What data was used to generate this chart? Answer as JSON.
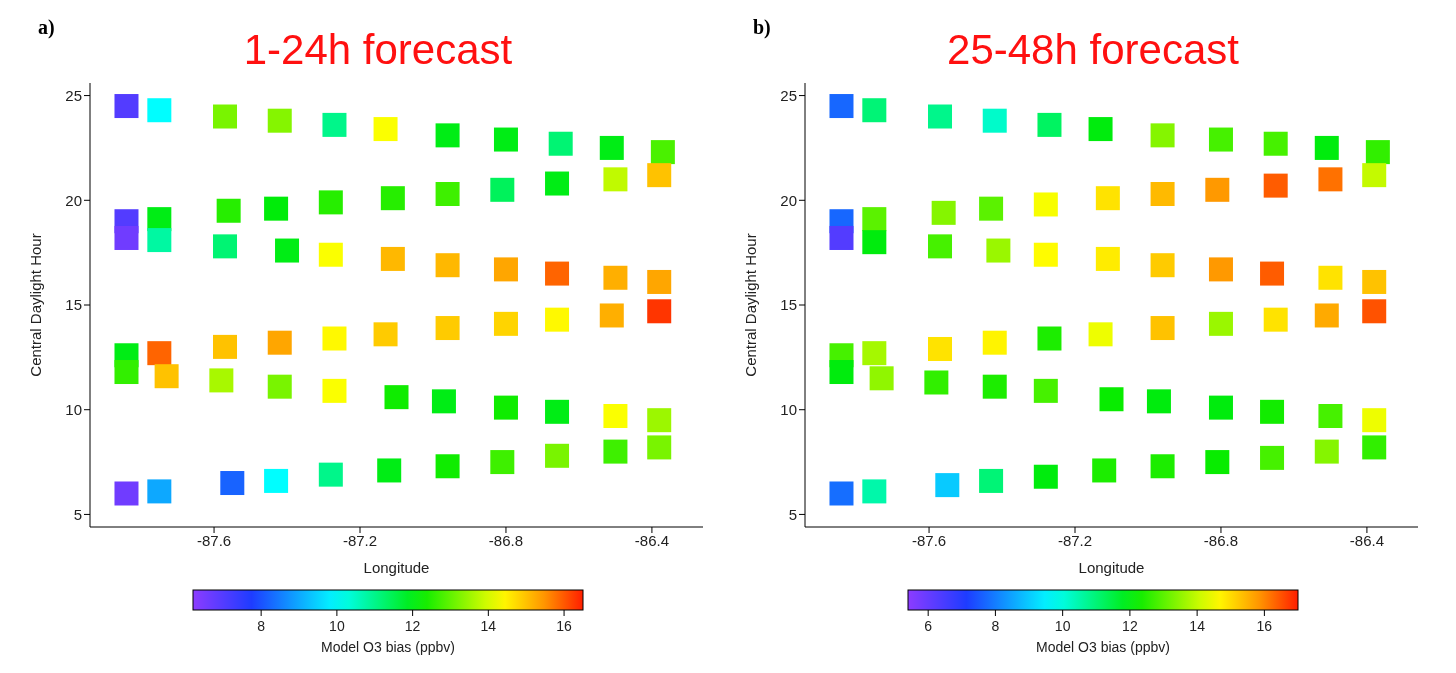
{
  "chart_data": [
    {
      "type": "scatter",
      "title": "1-24h forecast",
      "annotations": [
        "a)"
      ],
      "xlabel": "Longitude",
      "ylabel": "Central Daylight Hour",
      "clabel": "Model O3 bias (ppbv)",
      "marker": "square",
      "x": [
        -87.84,
        -87.75,
        -87.57,
        -87.42,
        -87.27,
        -87.13,
        -86.96,
        -86.8,
        -86.65,
        -86.51,
        -86.37,
        -87.84,
        -87.75,
        -87.56,
        -87.43,
        -87.28,
        -87.11,
        -86.96,
        -86.81,
        -86.66,
        -86.5,
        -86.38,
        -87.84,
        -87.75,
        -87.57,
        -87.4,
        -87.28,
        -87.11,
        -86.96,
        -86.8,
        -86.66,
        -86.5,
        -86.38,
        -87.84,
        -87.75,
        -87.57,
        -87.42,
        -87.27,
        -87.13,
        -86.96,
        -86.8,
        -86.66,
        -86.51,
        -86.38,
        -87.84,
        -87.73,
        -87.58,
        -87.42,
        -87.27,
        -87.1,
        -86.97,
        -86.8,
        -86.66,
        -86.5,
        -86.38,
        -87.84,
        -87.75,
        -87.55,
        -87.43,
        -87.28,
        -87.12,
        -86.96,
        -86.81,
        -86.66,
        -86.5,
        -86.38
      ],
      "values": [
        24.5,
        24.3,
        24.0,
        23.8,
        23.6,
        23.4,
        23.1,
        22.9,
        22.7,
        22.5,
        22.3,
        19.0,
        19.1,
        19.5,
        19.6,
        19.9,
        20.1,
        20.3,
        20.5,
        20.8,
        21.0,
        21.2,
        18.2,
        18.1,
        17.8,
        17.6,
        17.4,
        17.2,
        16.9,
        16.7,
        16.5,
        16.3,
        16.1,
        12.6,
        12.7,
        13.0,
        13.2,
        13.4,
        13.6,
        13.9,
        14.1,
        14.3,
        14.5,
        14.7,
        11.8,
        11.6,
        11.4,
        11.1,
        10.9,
        10.6,
        10.4,
        10.1,
        9.9,
        9.7,
        9.5,
        6.0,
        6.1,
        6.5,
        6.6,
        6.9,
        7.1,
        7.3,
        7.5,
        7.8,
        8.0,
        8.2
      ],
      "cvalues": [
        7.0,
        10.0,
        13.2,
        13.3,
        11.0,
        14.3,
        12.0,
        12.0,
        11.2,
        12.0,
        12.8,
        7.0,
        12.0,
        12.5,
        12.1,
        12.5,
        12.5,
        12.7,
        11.4,
        12.0,
        13.8,
        15.0,
        6.6,
        10.8,
        11.2,
        12.0,
        14.3,
        15.1,
        15.1,
        15.3,
        15.9,
        15.2,
        15.3,
        12.0,
        15.9,
        15.0,
        15.3,
        14.4,
        14.9,
        14.9,
        14.8,
        14.4,
        15.2,
        16.3,
        12.6,
        15.0,
        13.6,
        13.2,
        14.3,
        12.3,
        12.0,
        12.3,
        12.0,
        14.3,
        13.5,
        6.6,
        9.0,
        8.2,
        10.0,
        11.0,
        12.0,
        12.3,
        12.7,
        13.2,
        12.7,
        13.2
      ],
      "xlim": [
        -87.94,
        -86.26
      ],
      "ylim": [
        4.4,
        25.6
      ],
      "xticks": [
        -87.6,
        -87.2,
        -86.8,
        -86.4
      ],
      "yticks": [
        5,
        10,
        15,
        20,
        25
      ],
      "clim": [
        6.2,
        16.5
      ],
      "cticks": [
        8,
        10,
        12,
        14,
        16
      ]
    },
    {
      "type": "scatter",
      "title": "25-48h forecast",
      "annotations": [
        "b)"
      ],
      "xlabel": "Longitude",
      "ylabel": "Central Daylight Hour",
      "clabel": "Model O3 bias (ppbv)",
      "marker": "square",
      "x": [
        -87.84,
        -87.75,
        -87.57,
        -87.42,
        -87.27,
        -87.13,
        -86.96,
        -86.8,
        -86.65,
        -86.51,
        -86.37,
        -87.84,
        -87.75,
        -87.56,
        -87.43,
        -87.28,
        -87.11,
        -86.96,
        -86.81,
        -86.65,
        -86.5,
        -86.38,
        -87.84,
        -87.75,
        -87.57,
        -87.41,
        -87.28,
        -87.11,
        -86.96,
        -86.8,
        -86.66,
        -86.5,
        -86.38,
        -87.84,
        -87.75,
        -87.57,
        -87.42,
        -87.27,
        -87.13,
        -86.96,
        -86.8,
        -86.65,
        -86.51,
        -86.38,
        -87.84,
        -87.73,
        -87.58,
        -87.42,
        -87.28,
        -87.1,
        -86.97,
        -86.8,
        -86.66,
        -86.5,
        -86.38,
        -87.84,
        -87.75,
        -87.55,
        -87.43,
        -87.28,
        -87.12,
        -86.96,
        -86.81,
        -86.66,
        -86.51,
        -86.38
      ],
      "values": [
        24.5,
        24.3,
        24.0,
        23.8,
        23.6,
        23.4,
        23.1,
        22.9,
        22.7,
        22.5,
        22.3,
        19.0,
        19.1,
        19.4,
        19.6,
        19.8,
        20.1,
        20.3,
        20.5,
        20.7,
        21.0,
        21.2,
        18.2,
        18.0,
        17.8,
        17.6,
        17.4,
        17.2,
        16.9,
        16.7,
        16.5,
        16.3,
        16.1,
        12.6,
        12.7,
        12.9,
        13.2,
        13.4,
        13.6,
        13.9,
        14.1,
        14.3,
        14.5,
        14.7,
        11.8,
        11.5,
        11.3,
        11.1,
        10.9,
        10.5,
        10.4,
        10.1,
        9.9,
        9.7,
        9.5,
        6.0,
        6.1,
        6.4,
        6.6,
        6.8,
        7.1,
        7.3,
        7.5,
        7.7,
        8.0,
        8.2
      ],
      "cvalues": [
        7.7,
        11.0,
        10.8,
        10.2,
        11.2,
        12.0,
        13.4,
        12.8,
        12.8,
        12.0,
        12.6,
        7.7,
        13.0,
        13.4,
        13.0,
        14.5,
        14.9,
        15.4,
        15.8,
        16.4,
        16.2,
        14.0,
        6.3,
        12.0,
        12.8,
        13.6,
        14.6,
        14.8,
        15.2,
        15.8,
        16.4,
        14.9,
        15.3,
        12.8,
        13.7,
        14.9,
        14.7,
        12.4,
        14.4,
        15.3,
        13.6,
        14.9,
        15.6,
        16.5,
        12.0,
        13.5,
        12.6,
        12.4,
        12.8,
        12.2,
        12.0,
        12.0,
        12.3,
        12.8,
        14.4,
        7.8,
        10.5,
        9.0,
        11.0,
        12.0,
        12.4,
        12.4,
        12.2,
        12.8,
        13.4,
        12.6
      ],
      "xlim": [
        -87.94,
        -86.26
      ],
      "ylim": [
        4.4,
        25.6
      ],
      "xticks": [
        -87.6,
        -87.2,
        -86.8,
        -86.4
      ],
      "yticks": [
        5,
        10,
        15,
        20,
        25
      ],
      "clim": [
        5.4,
        17.0
      ],
      "cticks": [
        6,
        8,
        10,
        12,
        14,
        16
      ]
    }
  ]
}
